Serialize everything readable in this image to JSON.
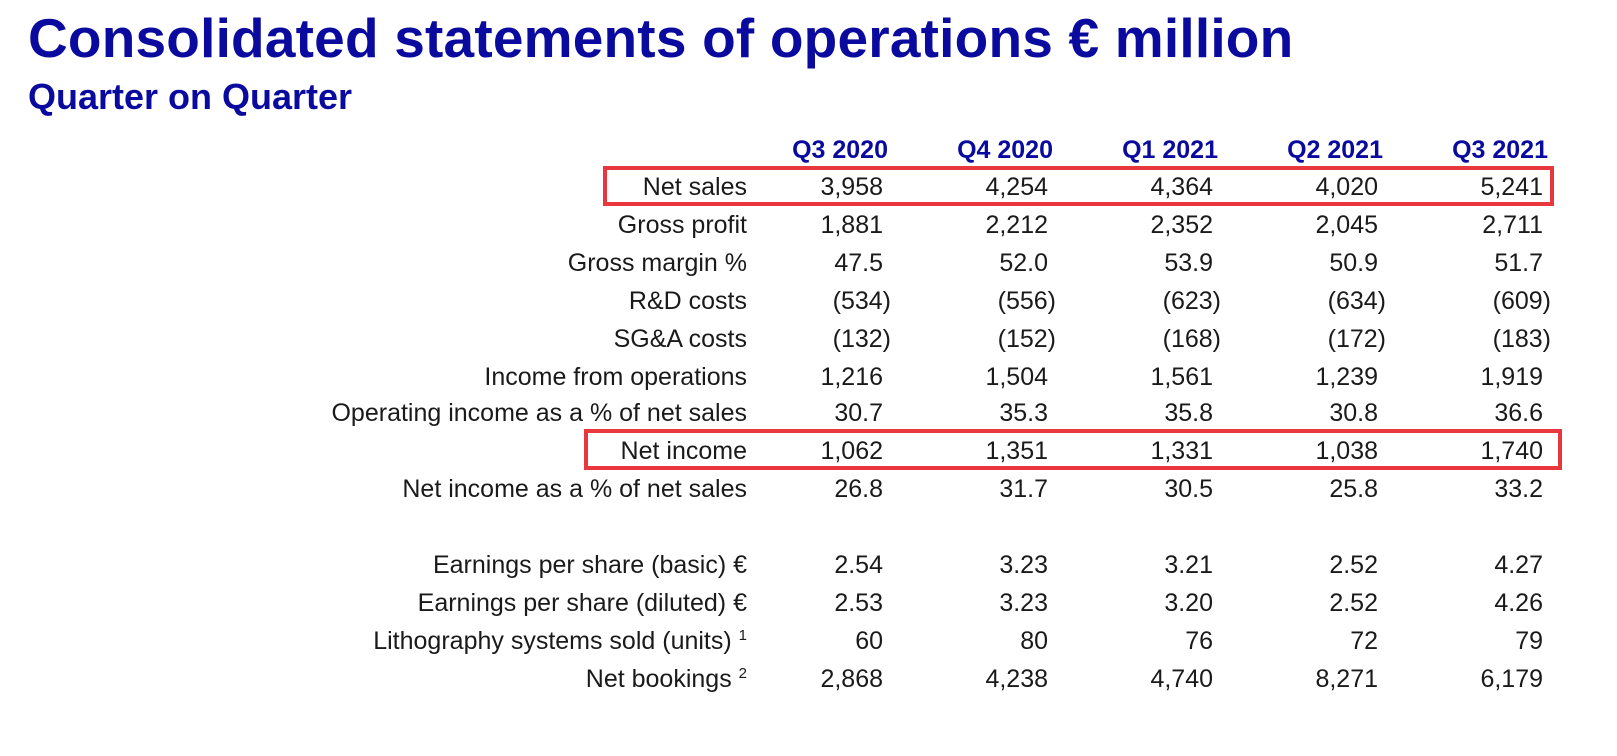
{
  "title": "Consolidated statements of operations € million",
  "subtitle": "Quarter on Quarter",
  "columns": [
    "Q3 2020",
    "Q4 2020",
    "Q1 2021",
    "Q2 2021",
    "Q3 2021"
  ],
  "rows": [
    {
      "label": "Net sales",
      "footnote": "",
      "values": [
        "3,958",
        "4,254",
        "4,364",
        "4,020",
        "5,241"
      ],
      "highlighted": true
    },
    {
      "label": "Gross profit",
      "footnote": "",
      "values": [
        "1,881",
        "2,212",
        "2,352",
        "2,045",
        "2,711"
      ]
    },
    {
      "label": "Gross margin %",
      "footnote": "",
      "values": [
        "47.5",
        "52.0",
        "53.9",
        "50.9",
        "51.7"
      ]
    },
    {
      "label": "R&D costs",
      "footnote": "",
      "values": [
        "(534)",
        "(556)",
        "(623)",
        "(634)",
        "(609)"
      ]
    },
    {
      "label": "SG&A costs",
      "footnote": "",
      "values": [
        "(132)",
        "(152)",
        "(168)",
        "(172)",
        "(183)"
      ]
    },
    {
      "label": "Income from operations",
      "footnote": "",
      "values": [
        "1,216",
        "1,504",
        "1,561",
        "1,239",
        "1,919"
      ]
    },
    {
      "label": "Operating income as a % of net sales",
      "footnote": "",
      "values": [
        "30.7",
        "35.3",
        "35.8",
        "30.8",
        "36.6"
      ]
    },
    {
      "label": "Net income",
      "footnote": "",
      "values": [
        "1,062",
        "1,351",
        "1,331",
        "1,038",
        "1,740"
      ],
      "highlighted": true
    },
    {
      "label": "Net income as a % of net sales",
      "footnote": "",
      "values": [
        "26.8",
        "31.7",
        "30.5",
        "25.8",
        "33.2"
      ]
    },
    {
      "label": "Earnings per share (basic) €",
      "footnote": "",
      "values": [
        "2.54",
        "3.23",
        "3.21",
        "2.52",
        "4.27"
      ]
    },
    {
      "label": "Earnings per share (diluted) €",
      "footnote": "",
      "values": [
        "2.53",
        "3.23",
        "3.20",
        "2.52",
        "4.26"
      ]
    },
    {
      "label": "Lithography systems sold (units)",
      "footnote": "1",
      "values": [
        "60",
        "80",
        "76",
        "72",
        "79"
      ]
    },
    {
      "label": "Net bookings",
      "footnote": "2",
      "values": [
        "2,868",
        "4,238",
        "4,740",
        "8,271",
        "6,179"
      ]
    }
  ],
  "colors": {
    "heading": "#0a0a9e",
    "highlight_border": "#e8383d",
    "text": "#1a1a1a"
  }
}
